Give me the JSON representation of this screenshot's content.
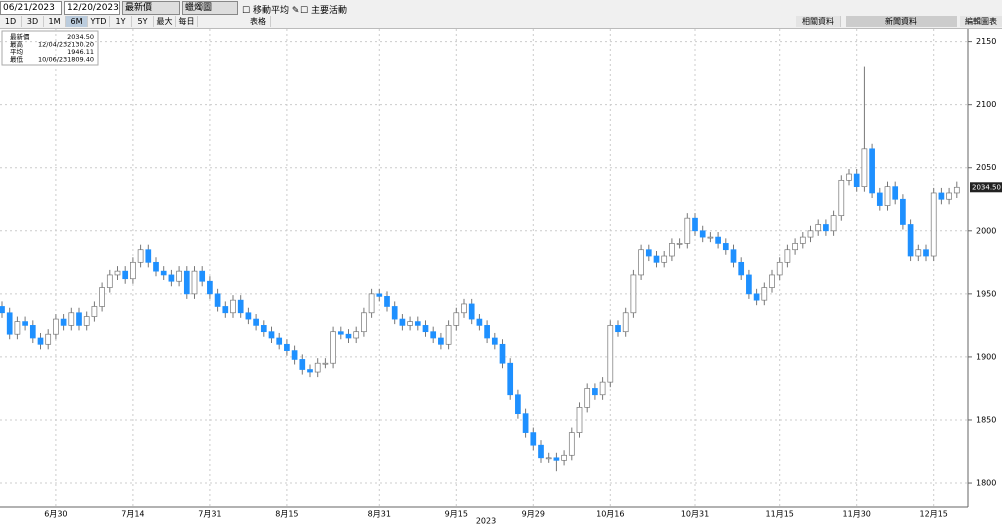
{
  "ui": {
    "date_from": "06/21/2023",
    "date_to": "12/20/2023",
    "field": "最新價",
    "style": "蠟燭圖",
    "moving_avg": "移動平均",
    "events": "主要活動",
    "ranges": [
      "1D",
      "3D",
      "1M",
      "6M",
      "YTD",
      "1Y",
      "5Y",
      "最大",
      "每日"
    ],
    "table": "表格",
    "related": "相關資料",
    "news": "新聞資料",
    "edit": "編輯圖表"
  },
  "legend": [
    [
      "最新價",
      "",
      "2034.50"
    ],
    [
      "最高",
      "12/04/23",
      "2130.20"
    ],
    [
      "平均",
      "",
      "1946.11"
    ],
    [
      "最低",
      "10/06/23",
      "1809.40"
    ]
  ],
  "chart_data": {
    "type": "candlestick",
    "xlabel": "2023",
    "up_color": "#ffffff",
    "down_color": "#1e90ff",
    "grid": true,
    "last_label": {
      "value": 2034.5,
      "label": "2034.50"
    },
    "ylim": [
      1781,
      2160
    ],
    "yticks": [
      1800,
      1850,
      1900,
      1950,
      2000,
      2050,
      2100,
      2150
    ],
    "categories": [
      null,
      null,
      null,
      null,
      null,
      null,
      null,
      "6月30",
      null,
      null,
      null,
      null,
      null,
      null,
      null,
      null,
      null,
      "7月14",
      null,
      null,
      null,
      null,
      null,
      null,
      null,
      null,
      null,
      "7月31",
      null,
      null,
      null,
      null,
      null,
      null,
      null,
      null,
      null,
      "8月15",
      null,
      null,
      null,
      null,
      null,
      null,
      null,
      null,
      null,
      null,
      null,
      "8月31",
      null,
      null,
      null,
      null,
      null,
      null,
      null,
      null,
      null,
      "9月15",
      null,
      null,
      null,
      null,
      null,
      null,
      null,
      null,
      null,
      "9月29",
      null,
      null,
      null,
      null,
      null,
      null,
      null,
      null,
      null,
      "10月16",
      null,
      null,
      null,
      null,
      null,
      null,
      null,
      null,
      null,
      null,
      "10月31",
      null,
      null,
      null,
      null,
      null,
      null,
      null,
      null,
      null,
      null,
      "11月15",
      null,
      null,
      null,
      null,
      null,
      null,
      null,
      null,
      null,
      "11月30",
      null,
      null,
      null,
      null,
      null,
      null,
      null,
      null,
      null,
      "12月15",
      null,
      null,
      null
    ],
    "open": [
      1940,
      1935,
      1918,
      1928,
      1925,
      1915,
      1910,
      1918,
      1930,
      1925,
      1935,
      1925,
      1932,
      1940,
      1955,
      1965,
      1968,
      1962,
      1975,
      1985,
      1975,
      1968,
      1965,
      1960,
      1968,
      1950,
      1968,
      1960,
      1950,
      1940,
      1935,
      1945,
      1935,
      1930,
      1925,
      1920,
      1915,
      1910,
      1905,
      1898,
      1890,
      1888,
      1895,
      1895,
      1920,
      1918,
      1915,
      1920,
      1935,
      1950,
      1948,
      1940,
      1930,
      1925,
      1928,
      1925,
      1920,
      1915,
      1910,
      1925,
      1935,
      1942,
      1930,
      1925,
      1915,
      1910,
      1895,
      1870,
      1855,
      1840,
      1830,
      1820,
      1820,
      1818,
      1822,
      1840,
      1860,
      1875,
      1870,
      1880,
      1925,
      1920,
      1935,
      1965,
      1985,
      1980,
      1975,
      1980,
      1990,
      1990,
      2010,
      2000,
      1995,
      1995,
      1990,
      1985,
      1975,
      1965,
      1950,
      1945,
      1955,
      1965,
      1975,
      1985,
      1990,
      1995,
      2000,
      2005,
      2000,
      2012,
      2040,
      2045,
      2035,
      2065,
      2030,
      2020,
      2035,
      2025,
      2005,
      1980,
      1985,
      1980,
      2030,
      2025,
      2030
    ],
    "high": [
      1944,
      1939,
      1932,
      1932,
      1929,
      1919,
      1922,
      1934,
      1934,
      1939,
      1939,
      1936,
      1944,
      1959,
      1969,
      1972,
      1972,
      1979,
      1989,
      1989,
      1979,
      1972,
      1969,
      1972,
      1972,
      1972,
      1972,
      1964,
      1954,
      1944,
      1949,
      1949,
      1939,
      1934,
      1929,
      1924,
      1919,
      1914,
      1909,
      1902,
      1894,
      1899,
      1899,
      1924,
      1924,
      1922,
      1924,
      1939,
      1954,
      1954,
      1952,
      1944,
      1934,
      1932,
      1932,
      1929,
      1924,
      1919,
      1929,
      1939,
      1946,
      1946,
      1934,
      1929,
      1919,
      1914,
      1899,
      1874,
      1859,
      1844,
      1834,
      1824,
      1824,
      1826,
      1844,
      1864,
      1879,
      1879,
      1884,
      1929,
      1929,
      1939,
      1969,
      1989,
      1989,
      1984,
      1984,
      1994,
      1994,
      2014,
      2014,
      2004,
      1999,
      1999,
      1994,
      1989,
      1979,
      1969,
      1954,
      1959,
      1969,
      1979,
      1989,
      1994,
      1999,
      2004,
      2009,
      2009,
      2016,
      2044,
      2049,
      2049,
      2130.2,
      2069,
      2034,
      2039,
      2039,
      2029,
      2009,
      1989,
      1989,
      2034,
      2034,
      2034,
      2039
    ],
    "low": [
      1931,
      1914,
      1914,
      1921,
      1911,
      1906,
      1906,
      1914,
      1921,
      1921,
      1921,
      1921,
      1928,
      1936,
      1951,
      1961,
      1958,
      1958,
      1971,
      1971,
      1964,
      1961,
      1956,
      1956,
      1946,
      1946,
      1956,
      1946,
      1936,
      1931,
      1931,
      1931,
      1926,
      1921,
      1916,
      1911,
      1906,
      1901,
      1894,
      1886,
      1884,
      1884,
      1891,
      1891,
      1914,
      1911,
      1911,
      1916,
      1931,
      1944,
      1936,
      1926,
      1921,
      1921,
      1921,
      1916,
      1911,
      1906,
      1906,
      1921,
      1931,
      1926,
      1921,
      1911,
      1906,
      1891,
      1866,
      1851,
      1836,
      1826,
      1816,
      1816,
      1809.4,
      1814,
      1818,
      1836,
      1856,
      1866,
      1866,
      1876,
      1916,
      1916,
      1931,
      1961,
      1976,
      1971,
      1971,
      1976,
      1986,
      1986,
      1996,
      1991,
      1991,
      1986,
      1981,
      1971,
      1961,
      1946,
      1941,
      1941,
      1951,
      1961,
      1971,
      1981,
      1986,
      1991,
      1996,
      1996,
      1996,
      2008,
      2036,
      2031,
      2031,
      2026,
      2016,
      2016,
      2021,
      2001,
      1976,
      1976,
      1976,
      1976,
      2021,
      2021,
      2026
    ],
    "close": [
      1935,
      1918,
      1928,
      1925,
      1915,
      1910,
      1918,
      1930,
      1925,
      1935,
      1925,
      1932,
      1940,
      1955,
      1965,
      1968,
      1962,
      1975,
      1985,
      1975,
      1968,
      1965,
      1960,
      1968,
      1950,
      1968,
      1960,
      1950,
      1940,
      1935,
      1945,
      1935,
      1930,
      1925,
      1920,
      1915,
      1910,
      1905,
      1898,
      1890,
      1888,
      1895,
      1895,
      1920,
      1918,
      1915,
      1920,
      1935,
      1950,
      1948,
      1940,
      1930,
      1925,
      1928,
      1925,
      1920,
      1915,
      1910,
      1925,
      1935,
      1942,
      1930,
      1925,
      1915,
      1910,
      1895,
      1870,
      1855,
      1840,
      1830,
      1820,
      1820,
      1818,
      1822,
      1840,
      1860,
      1875,
      1870,
      1880,
      1925,
      1920,
      1935,
      1965,
      1985,
      1980,
      1975,
      1980,
      1990,
      1990,
      2010,
      2000,
      1995,
      1995,
      1990,
      1985,
      1975,
      1965,
      1950,
      1945,
      1955,
      1965,
      1975,
      1985,
      1990,
      1995,
      2000,
      2005,
      2000,
      2012,
      2040,
      2045,
      2035,
      2065,
      2030,
      2020,
      2035,
      2025,
      2005,
      1980,
      1985,
      1980,
      2030,
      2025,
      2030,
      2034.5
    ]
  }
}
